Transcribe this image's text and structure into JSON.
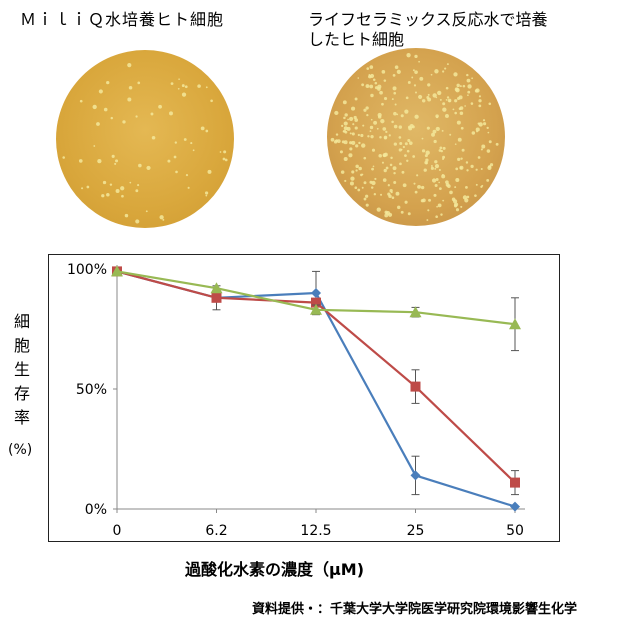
{
  "captions": {
    "left": "ＭｉｌｉＱ水培養ヒト細胞",
    "right": "ライフセラミックス反応水で培養\nしたヒト細胞"
  },
  "y_axis_label_chars": [
    "細",
    "胞",
    "生",
    "存",
    "率"
  ],
  "y_axis_unit": "(%)",
  "x_axis_label": "過酸化水素の濃度（μM)",
  "credit": "資料提供・：千葉大学大学院医学研究院環境影響生化学",
  "colors": {
    "blue": "#4a7ebb",
    "red": "#be4b48",
    "green": "#98b954",
    "dish_left": "#d9a73c",
    "dish_right": "#d4a24e",
    "cell": "#f3e79a"
  },
  "chart_data": {
    "type": "line",
    "categories": [
      "0",
      "6.2",
      "12.5",
      "25",
      "50"
    ],
    "y_ticks": [
      "0%",
      "50%",
      "100%"
    ],
    "ylim": [
      0,
      100
    ],
    "xlabel": "過酸化水素の濃度（μM)",
    "ylabel": "細胞生存率 (%)",
    "grid": false,
    "series": [
      {
        "color": "#4a7ebb",
        "marker": "diamond",
        "values": [
          99,
          88,
          90,
          14,
          1
        ],
        "err": [
          null,
          null,
          9,
          8,
          null
        ]
      },
      {
        "color": "#be4b48",
        "marker": "square",
        "values": [
          99,
          88,
          86,
          51,
          11
        ],
        "err": [
          null,
          5,
          null,
          7,
          5
        ]
      },
      {
        "color": "#98b954",
        "marker": "triangle",
        "values": [
          99,
          92,
          83,
          82,
          77
        ],
        "err": [
          null,
          null,
          2,
          2,
          11
        ]
      }
    ]
  }
}
